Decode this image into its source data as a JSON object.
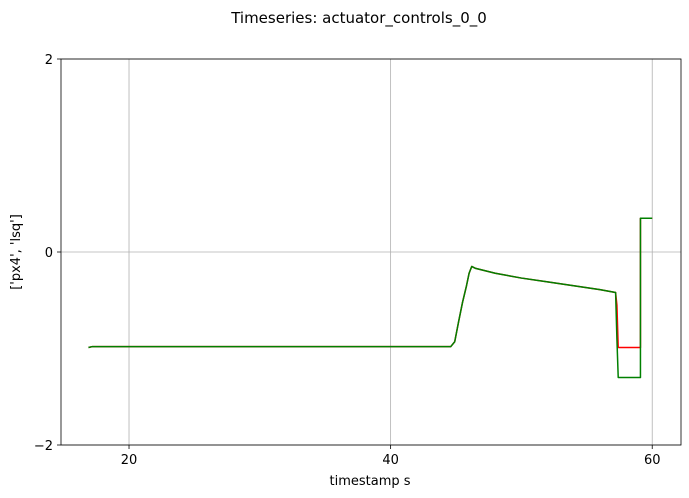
{
  "chart_data": {
    "type": "line",
    "title": "Timeseries: actuator_controls_0_0",
    "xlabel": "timestamp s",
    "ylabel": "['px4', 'lsq']",
    "xlim": [
      14.8,
      62.2
    ],
    "ylim": [
      -2,
      2
    ],
    "xticks": [
      20,
      40,
      60
    ],
    "yticks": [
      -2,
      0,
      2
    ],
    "grid": true,
    "series": [
      {
        "color": "#ff0000",
        "x": [
          16.9,
          17.2,
          20,
          25,
          30,
          35,
          40,
          44.6,
          44.9,
          45.2,
          45.5,
          45.8,
          46.0,
          46.2,
          46.5,
          48,
          50,
          52,
          54,
          56,
          57.2,
          57.3,
          57.4,
          59.1,
          59.1,
          60.0
        ],
        "y": [
          -0.99,
          -0.98,
          -0.98,
          -0.98,
          -0.98,
          -0.98,
          -0.98,
          -0.98,
          -0.93,
          -0.72,
          -0.52,
          -0.35,
          -0.22,
          -0.15,
          -0.17,
          -0.22,
          -0.27,
          -0.31,
          -0.35,
          -0.39,
          -0.42,
          -0.55,
          -0.99,
          -0.99,
          0.35,
          0.35
        ]
      },
      {
        "color": "#008000",
        "x": [
          16.9,
          17.2,
          20,
          25,
          30,
          35,
          40,
          44.6,
          44.9,
          45.2,
          45.5,
          45.8,
          46.0,
          46.2,
          46.5,
          48,
          50,
          52,
          54,
          56,
          57.2,
          57.3,
          57.4,
          59.1,
          59.1,
          60.0
        ],
        "y": [
          -0.99,
          -0.98,
          -0.98,
          -0.98,
          -0.98,
          -0.98,
          -0.98,
          -0.98,
          -0.93,
          -0.72,
          -0.52,
          -0.35,
          -0.22,
          -0.15,
          -0.17,
          -0.22,
          -0.27,
          -0.31,
          -0.35,
          -0.39,
          -0.42,
          -0.9,
          -1.3,
          -1.3,
          0.35,
          0.35
        ]
      }
    ]
  }
}
